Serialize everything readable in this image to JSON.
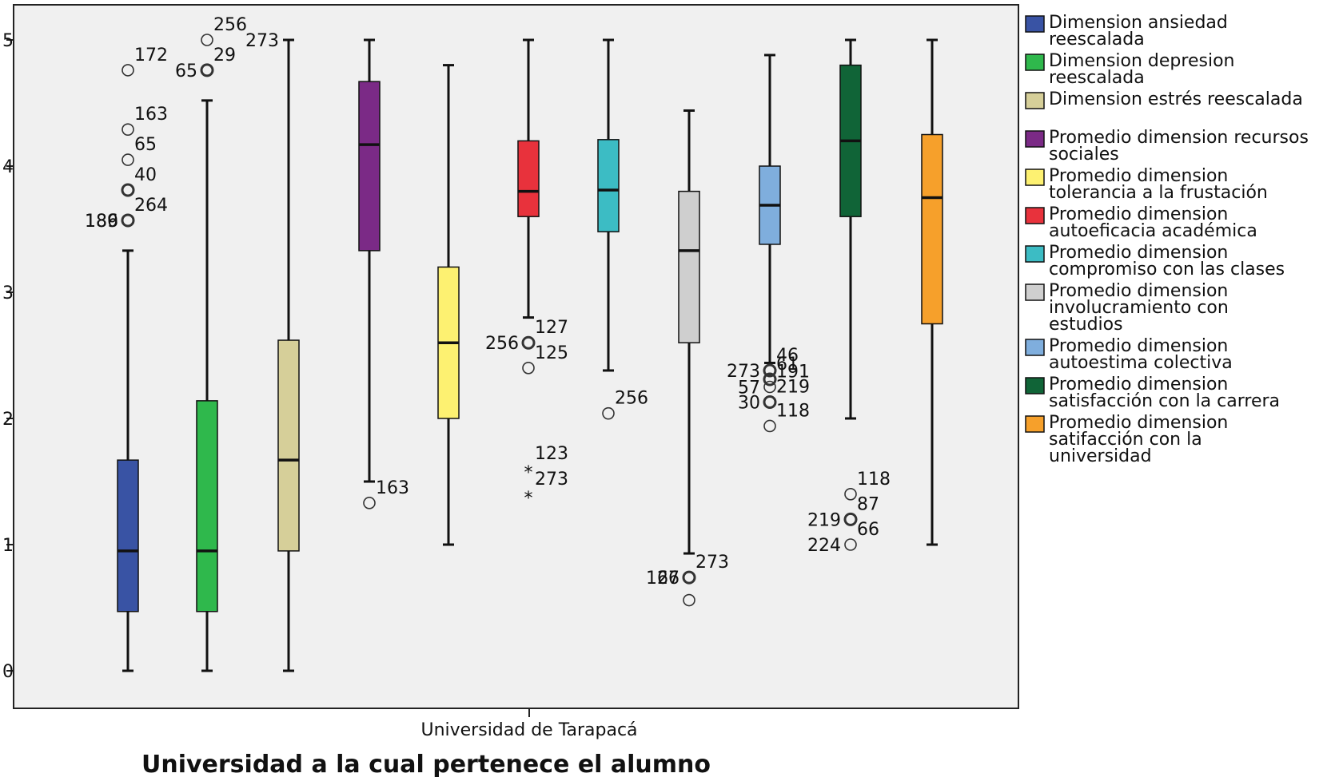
{
  "chart_data": {
    "type": "boxplot",
    "x_category": "Universidad de Tarapacá",
    "xlabel": "Universidad a la cual pertenece el alumno",
    "ylabel": "",
    "ylim": [
      0,
      5
    ],
    "yticks": [
      0,
      1,
      2,
      3,
      4,
      5
    ],
    "legend_position": "right",
    "series": [
      {
        "name": "Dimension ansiedad reescalada",
        "color": "#3953a4",
        "whisker_low": 0,
        "q1": 0.47,
        "median": 0.95,
        "q3": 1.67,
        "whisker_high": 3.33,
        "outliers": [
          {
            "value": 4.76,
            "symbol": "circle",
            "label": "172"
          },
          {
            "value": 4.29,
            "symbol": "circle",
            "label": "163"
          },
          {
            "value": 4.05,
            "symbol": "circle",
            "label": "65"
          },
          {
            "value": 3.81,
            "symbol": "circle-bold",
            "label": "40"
          },
          {
            "value": 3.57,
            "symbol": "circle-bold",
            "label": "264"
          },
          {
            "value": 3.57,
            "symbol": "none",
            "label": "186"
          },
          {
            "value": 3.57,
            "symbol": "none",
            "label": "189"
          }
        ]
      },
      {
        "name": "Dimension depresion reescalada",
        "color": "#2fb84c",
        "whisker_low": 0,
        "q1": 0.47,
        "median": 0.95,
        "q3": 2.14,
        "whisker_high": 4.52,
        "outliers": [
          {
            "value": 5.0,
            "symbol": "circle",
            "label": "256"
          },
          {
            "value": 4.76,
            "symbol": "circle-bold",
            "label": "29"
          },
          {
            "value": 4.76,
            "symbol": "none",
            "label": "65"
          }
        ]
      },
      {
        "name": "Dimension estrés reescalada",
        "color": "#d6cf99",
        "whisker_low": 0,
        "q1": 0.95,
        "median": 1.67,
        "q3": 2.62,
        "whisker_high": 5.0,
        "outliers": [
          {
            "value": 5.0,
            "symbol": "none",
            "label": "273"
          }
        ]
      },
      {
        "name": "Promedio dimension recursos sociales",
        "color": "#7b2a86",
        "whisker_low": 1.5,
        "q1": 3.33,
        "median": 4.17,
        "q3": 4.67,
        "whisker_high": 5.0,
        "outliers": [
          {
            "value": 1.33,
            "symbol": "circle",
            "label": "163"
          }
        ]
      },
      {
        "name": "Promedio dimension tolerancia a la frustación",
        "color": "#fdf171",
        "whisker_low": 1.0,
        "q1": 2.0,
        "median": 2.6,
        "q3": 3.2,
        "whisker_high": 4.8,
        "outliers": []
      },
      {
        "name": "Promedio dimension autoeficacia académica",
        "color": "#e8323c",
        "whisker_low": 2.8,
        "q1": 3.6,
        "median": 3.8,
        "q3": 4.2,
        "whisker_high": 5.0,
        "outliers": [
          {
            "value": 2.6,
            "symbol": "circle-bold",
            "label": "127"
          },
          {
            "value": 2.6,
            "symbol": "none",
            "label": "256"
          },
          {
            "value": 2.4,
            "symbol": "circle",
            "label": "125"
          },
          {
            "value": 1.6,
            "symbol": "star",
            "label": "123"
          },
          {
            "value": 1.4,
            "symbol": "star",
            "label": "273"
          }
        ]
      },
      {
        "name": "Promedio dimension compromiso con las clases",
        "color": "#3cbcc4",
        "whisker_low": 2.38,
        "q1": 3.48,
        "median": 3.81,
        "q3": 4.21,
        "whisker_high": 5.0,
        "outliers": [
          {
            "value": 2.04,
            "symbol": "circle",
            "label": "256"
          }
        ]
      },
      {
        "name": "Promedio dimension involucramiento con estudios",
        "color": "#cfcfcf",
        "whisker_low": 0.93,
        "q1": 2.6,
        "median": 3.33,
        "q3": 3.8,
        "whisker_high": 4.44,
        "outliers": [
          {
            "value": 0.74,
            "symbol": "circle-bold",
            "label": "273"
          },
          {
            "value": 0.74,
            "symbol": "none",
            "label": "127"
          },
          {
            "value": 0.74,
            "symbol": "none",
            "label": "66"
          },
          {
            "value": 0.56,
            "symbol": "circle",
            "label": ""
          }
        ]
      },
      {
        "name": "Promedio dimension autoestima colectiva",
        "color": "#7faedd",
        "whisker_low": 2.44,
        "q1": 3.38,
        "median": 3.69,
        "q3": 4.0,
        "whisker_high": 4.88,
        "outliers": [
          {
            "value": 2.38,
            "symbol": "circle-bold",
            "label": "46"
          },
          {
            "value": 2.38,
            "symbol": "none",
            "label": "273"
          },
          {
            "value": 2.31,
            "symbol": "circle-bold",
            "label": "61"
          },
          {
            "value": 2.25,
            "symbol": "circle",
            "label": "191"
          },
          {
            "value": 2.25,
            "symbol": "none",
            "label": "57"
          },
          {
            "value": 2.13,
            "symbol": "circle-bold",
            "label": "219"
          },
          {
            "value": 2.13,
            "symbol": "none",
            "label": "30"
          },
          {
            "value": 1.94,
            "symbol": "circle",
            "label": "118"
          }
        ]
      },
      {
        "name": "Promedio dimension satisfacción con la carrera",
        "color": "#106437",
        "whisker_low": 2.0,
        "q1": 3.6,
        "median": 4.2,
        "q3": 4.8,
        "whisker_high": 5.0,
        "outliers": [
          {
            "value": 1.4,
            "symbol": "circle",
            "label": "118"
          },
          {
            "value": 1.2,
            "symbol": "circle-bold",
            "label": "87"
          },
          {
            "value": 1.2,
            "symbol": "none",
            "label": "219"
          },
          {
            "value": 1.0,
            "symbol": "circle",
            "label": "66"
          },
          {
            "value": 1.0,
            "symbol": "none",
            "label": "224"
          }
        ]
      },
      {
        "name": "Promedio dimension satifacción con la universidad",
        "color": "#f6a02b",
        "whisker_low": 1.0,
        "q1": 2.75,
        "median": 3.75,
        "q3": 4.25,
        "whisker_high": 5.0,
        "outliers": []
      }
    ]
  }
}
